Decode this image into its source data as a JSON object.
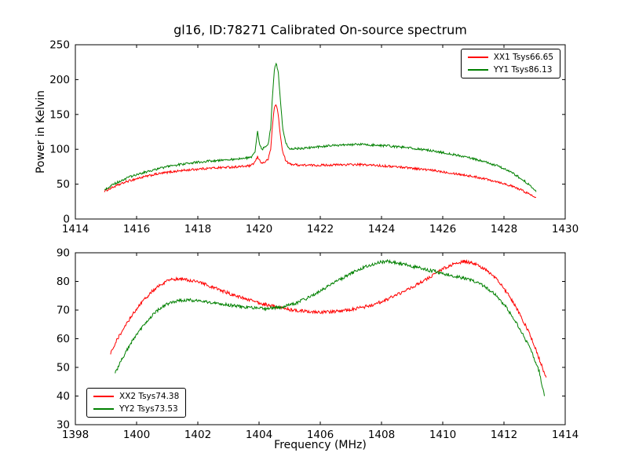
{
  "figure": {
    "background": "#ffffff",
    "axes_color": "#000000"
  },
  "chart_data": [
    {
      "type": "line",
      "title": "gl16, ID:78271 Calibrated On-source spectrum",
      "xlabel": "",
      "ylabel": "Power in Kelvin",
      "xlim": [
        1414,
        1430
      ],
      "ylim": [
        0,
        250
      ],
      "x_ticks": [
        1414,
        1416,
        1418,
        1420,
        1422,
        1424,
        1426,
        1428,
        1430
      ],
      "y_ticks": [
        0,
        50,
        100,
        150,
        200,
        250
      ],
      "grid": false,
      "legend_position": "upper-right",
      "series": [
        {
          "label": "XX1 Tsys66.65",
          "color": "#ff0000",
          "noise": 1.6,
          "points": [
            [
              1414.95,
              40
            ],
            [
              1415.3,
              47
            ],
            [
              1415.7,
              54
            ],
            [
              1416.1,
              59
            ],
            [
              1416.6,
              64
            ],
            [
              1417.1,
              67.5
            ],
            [
              1417.6,
              70
            ],
            [
              1418.1,
              72
            ],
            [
              1418.6,
              73.5
            ],
            [
              1419.1,
              74.5
            ],
            [
              1419.5,
              75.5
            ],
            [
              1419.75,
              76.5
            ],
            [
              1419.87,
              82
            ],
            [
              1419.95,
              89
            ],
            [
              1420.02,
              84
            ],
            [
              1420.1,
              80
            ],
            [
              1420.2,
              82
            ],
            [
              1420.3,
              86
            ],
            [
              1420.38,
              100
            ],
            [
              1420.45,
              140
            ],
            [
              1420.5,
              160
            ],
            [
              1420.55,
              165
            ],
            [
              1420.62,
              152
            ],
            [
              1420.7,
              118
            ],
            [
              1420.78,
              95
            ],
            [
              1420.88,
              83
            ],
            [
              1421.0,
              79
            ],
            [
              1421.3,
              77.5
            ],
            [
              1421.8,
              77
            ],
            [
              1422.3,
              77.5
            ],
            [
              1422.8,
              78
            ],
            [
              1423.3,
              78
            ],
            [
              1423.8,
              77
            ],
            [
              1424.3,
              75.5
            ],
            [
              1424.8,
              74
            ],
            [
              1425.3,
              71.5
            ],
            [
              1425.8,
              69
            ],
            [
              1426.3,
              66
            ],
            [
              1426.8,
              62.5
            ],
            [
              1427.3,
              58.5
            ],
            [
              1427.8,
              53.5
            ],
            [
              1428.2,
              48
            ],
            [
              1428.6,
              41
            ],
            [
              1428.9,
              34
            ],
            [
              1429.05,
              31
            ]
          ]
        },
        {
          "label": "YY1 Tsys86.13",
          "color": "#008000",
          "noise": 1.6,
          "points": [
            [
              1414.95,
              42
            ],
            [
              1415.3,
              51
            ],
            [
              1415.7,
              59
            ],
            [
              1416.1,
              65
            ],
            [
              1416.6,
              71
            ],
            [
              1417.1,
              76
            ],
            [
              1417.6,
              79.5
            ],
            [
              1418.1,
              82
            ],
            [
              1418.6,
              84
            ],
            [
              1419.1,
              85.5
            ],
            [
              1419.5,
              87
            ],
            [
              1419.75,
              88
            ],
            [
              1419.87,
              96
            ],
            [
              1419.95,
              127
            ],
            [
              1420.02,
              107
            ],
            [
              1420.1,
              100
            ],
            [
              1420.2,
              103
            ],
            [
              1420.3,
              108
            ],
            [
              1420.38,
              130
            ],
            [
              1420.45,
              185
            ],
            [
              1420.5,
              215
            ],
            [
              1420.56,
              223
            ],
            [
              1420.63,
              210
            ],
            [
              1420.7,
              168
            ],
            [
              1420.78,
              128
            ],
            [
              1420.88,
              108
            ],
            [
              1421.0,
              101
            ],
            [
              1421.3,
              101
            ],
            [
              1421.8,
              103
            ],
            [
              1422.3,
              105
            ],
            [
              1422.8,
              106.5
            ],
            [
              1423.3,
              107
            ],
            [
              1423.8,
              106
            ],
            [
              1424.3,
              104.5
            ],
            [
              1424.8,
              102.5
            ],
            [
              1425.3,
              100
            ],
            [
              1425.8,
              97
            ],
            [
              1426.3,
              93
            ],
            [
              1426.8,
              88.5
            ],
            [
              1427.3,
              83
            ],
            [
              1427.8,
              76
            ],
            [
              1428.2,
              68
            ],
            [
              1428.6,
              57
            ],
            [
              1428.9,
              46
            ],
            [
              1429.05,
              39
            ]
          ]
        }
      ]
    },
    {
      "type": "line",
      "title": "",
      "xlabel": "Frequency (MHz)",
      "ylabel": "",
      "xlim": [
        1398,
        1414
      ],
      "ylim": [
        30,
        90
      ],
      "x_ticks": [
        1398,
        1400,
        1402,
        1404,
        1406,
        1408,
        1410,
        1412,
        1414
      ],
      "y_ticks": [
        30,
        40,
        50,
        60,
        70,
        80,
        90
      ],
      "grid": false,
      "legend_position": "lower-left",
      "series": [
        {
          "label": "XX2 Tsys74.38",
          "color": "#ff0000",
          "noise": 0.55,
          "points": [
            [
              1399.15,
              55
            ],
            [
              1399.35,
              59.5
            ],
            [
              1399.6,
              64
            ],
            [
              1399.9,
              69
            ],
            [
              1400.2,
              73
            ],
            [
              1400.5,
              76.5
            ],
            [
              1400.8,
              79
            ],
            [
              1401.1,
              80.5
            ],
            [
              1401.4,
              81
            ],
            [
              1401.7,
              80.5
            ],
            [
              1402.1,
              79.5
            ],
            [
              1402.6,
              77.5
            ],
            [
              1403.1,
              75.5
            ],
            [
              1403.6,
              73.8
            ],
            [
              1404.1,
              72.2
            ],
            [
              1404.6,
              71
            ],
            [
              1405.1,
              70
            ],
            [
              1405.6,
              69.5
            ],
            [
              1406.1,
              69.3
            ],
            [
              1406.6,
              69.6
            ],
            [
              1407.1,
              70.3
            ],
            [
              1407.6,
              71.5
            ],
            [
              1408.1,
              73.3
            ],
            [
              1408.6,
              75.8
            ],
            [
              1409.1,
              78.6
            ],
            [
              1409.6,
              81.6
            ],
            [
              1410.0,
              84.3
            ],
            [
              1410.35,
              86
            ],
            [
              1410.7,
              87
            ],
            [
              1411.0,
              86.3
            ],
            [
              1411.3,
              84.8
            ],
            [
              1411.6,
              82.5
            ],
            [
              1411.9,
              79
            ],
            [
              1412.2,
              74.5
            ],
            [
              1412.5,
              69
            ],
            [
              1412.8,
              62.5
            ],
            [
              1413.05,
              56
            ],
            [
              1413.25,
              50
            ],
            [
              1413.38,
              46.5
            ]
          ]
        },
        {
          "label": "YY2 Tsys73.53",
          "color": "#008000",
          "noise": 0.55,
          "points": [
            [
              1399.3,
              48
            ],
            [
              1399.55,
              53.5
            ],
            [
              1399.85,
              59
            ],
            [
              1400.15,
              63.5
            ],
            [
              1400.45,
              67.5
            ],
            [
              1400.75,
              70.5
            ],
            [
              1401.05,
              72.3
            ],
            [
              1401.35,
              73.2
            ],
            [
              1401.7,
              73.5
            ],
            [
              1402.1,
              73.2
            ],
            [
              1402.5,
              72.6
            ],
            [
              1402.9,
              72
            ],
            [
              1403.4,
              71.2
            ],
            [
              1403.9,
              70.7
            ],
            [
              1404.3,
              70.5
            ],
            [
              1404.7,
              71
            ],
            [
              1405.1,
              72
            ],
            [
              1405.5,
              73.8
            ],
            [
              1405.9,
              76
            ],
            [
              1406.3,
              78.5
            ],
            [
              1406.7,
              81
            ],
            [
              1407.1,
              83.3
            ],
            [
              1407.5,
              85.2
            ],
            [
              1407.85,
              86.5
            ],
            [
              1408.15,
              87
            ],
            [
              1408.45,
              86.7
            ],
            [
              1408.8,
              85.8
            ],
            [
              1409.2,
              84.8
            ],
            [
              1409.6,
              83.8
            ],
            [
              1410.0,
              82.8
            ],
            [
              1410.4,
              81.8
            ],
            [
              1410.8,
              80.8
            ],
            [
              1411.1,
              79.8
            ],
            [
              1411.4,
              78
            ],
            [
              1411.7,
              75.5
            ],
            [
              1412.0,
              72
            ],
            [
              1412.3,
              67.5
            ],
            [
              1412.6,
              62
            ],
            [
              1412.9,
              55.5
            ],
            [
              1413.15,
              48.5
            ],
            [
              1413.32,
              40
            ]
          ]
        }
      ]
    }
  ]
}
